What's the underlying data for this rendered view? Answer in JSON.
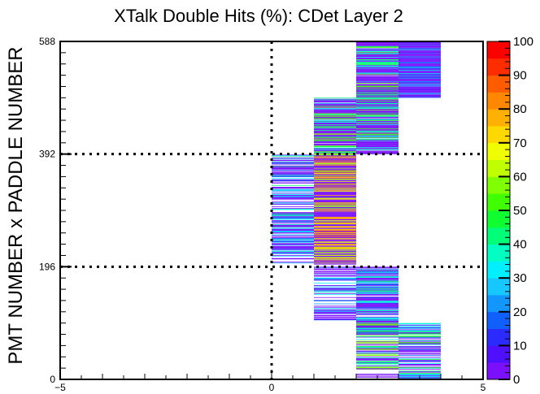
{
  "chart_data": {
    "type": "heatmap",
    "title": "XTalk Double Hits (%): CDet Layer 2",
    "xlabel": "",
    "ylabel": "PMT NUMBER x PADDLE NUMBER",
    "xlim": [
      -5,
      5
    ],
    "ylim": [
      0,
      588
    ],
    "x_ticks": [
      "−5",
      "0",
      "5"
    ],
    "y_ticks": [
      "0",
      "196",
      "392",
      "588"
    ],
    "y_tick_values": [
      0,
      196,
      392,
      588
    ],
    "colorbar": {
      "min": 0,
      "max": 100,
      "ticks": [
        "0",
        "10",
        "20",
        "30",
        "40",
        "50",
        "60",
        "70",
        "80",
        "90",
        "100"
      ],
      "palette": [
        "#7b10ff",
        "#4f10ff",
        "#2b2bff",
        "#1060ff",
        "#1496ff",
        "#16c8ff",
        "#00f0ff",
        "#00ffc0",
        "#00ff78",
        "#10ff30",
        "#40ff00",
        "#80ff00",
        "#c0ff00",
        "#f0ff00",
        "#ffd800",
        "#ffb000",
        "#ff8800",
        "#ff5c00",
        "#ff2c00",
        "#ff0000"
      ]
    },
    "dashed_lines": {
      "x": [
        0
      ],
      "y": [
        196,
        392
      ]
    },
    "blocks": [
      {
        "x0": 0,
        "x1": 1,
        "y0": 202,
        "y1": 392,
        "level": 5,
        "fill_density": 0.7
      },
      {
        "x0": 1,
        "x1": 2,
        "y0": 200,
        "y1": 392,
        "level": 14,
        "fill_density": 1.0
      },
      {
        "x0": 1,
        "x1": 2,
        "y0": 392,
        "y1": 490,
        "level": 9,
        "fill_density": 0.95
      },
      {
        "x0": 1,
        "x1": 2,
        "y0": 98,
        "y1": 196,
        "level": 4,
        "fill_density": 0.6
      },
      {
        "x0": 2,
        "x1": 3,
        "y0": 392,
        "y1": 588,
        "level": 8,
        "fill_density": 0.97
      },
      {
        "x0": 2,
        "x1": 3,
        "y0": 76,
        "y1": 196,
        "level": 5,
        "fill_density": 0.9
      },
      {
        "x0": 2,
        "x1": 3,
        "y0": 0,
        "y1": 98,
        "level": 9,
        "fill_density": 0.65
      },
      {
        "x0": 3,
        "x1": 4,
        "y0": 490,
        "y1": 588,
        "level": 3,
        "fill_density": 1.0
      },
      {
        "x0": 3,
        "x1": 4,
        "y0": 0,
        "y1": 98,
        "level": 7,
        "fill_density": 0.7
      }
    ]
  }
}
